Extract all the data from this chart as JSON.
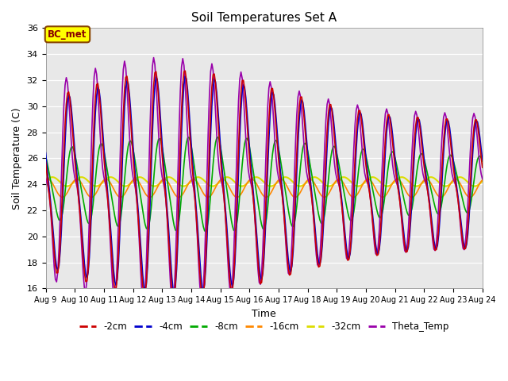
{
  "title": "Soil Temperatures Set A",
  "xlabel": "Time",
  "ylabel": "Soil Temperature (C)",
  "ylim": [
    16,
    36
  ],
  "x_tick_labels": [
    "Aug 9",
    "Aug 10",
    "Aug 11",
    "Aug 12",
    "Aug 13",
    "Aug 14",
    "Aug 15",
    "Aug 16",
    "Aug 17",
    "Aug 18",
    "Aug 19",
    "Aug 20",
    "Aug 21",
    "Aug 22",
    "Aug 23",
    "Aug 24"
  ],
  "x_tick_positions": [
    0,
    1,
    2,
    3,
    4,
    5,
    6,
    7,
    8,
    9,
    10,
    11,
    12,
    13,
    14,
    15
  ],
  "ytick_positions": [
    16,
    18,
    20,
    22,
    24,
    26,
    28,
    30,
    32,
    34,
    36
  ],
  "series_colors": {
    "-2cm": "#cc0000",
    "-4cm": "#0000cc",
    "-8cm": "#00aa00",
    "-16cm": "#ff8800",
    "-32cm": "#dddd00",
    "Theta_Temp": "#9900aa"
  },
  "background_color": "#e8e8e8",
  "annotation_text": "BC_met",
  "annotation_bg": "#ffff00",
  "annotation_border": "#884400",
  "figsize": [
    6.4,
    4.8
  ],
  "dpi": 100
}
